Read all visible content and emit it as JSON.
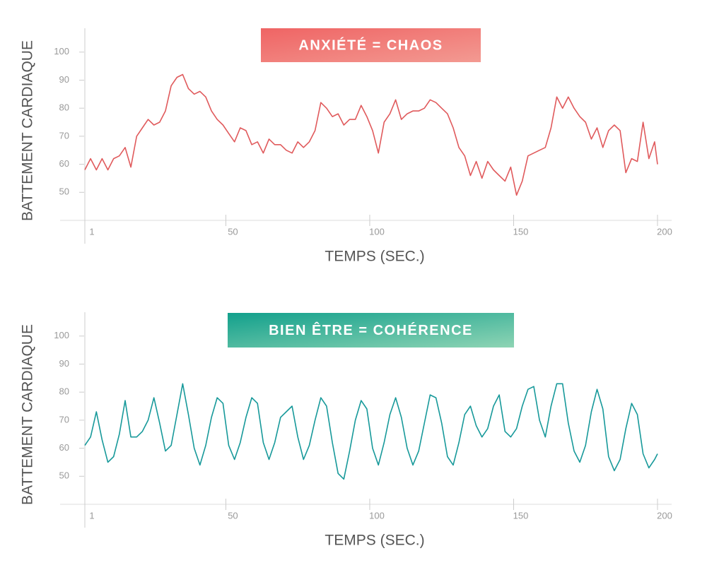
{
  "chart_data": [
    {
      "type": "line",
      "title": "ANXIÉTÉ = CHAOS",
      "xlabel": "TEMPS (SEC.)",
      "ylabel": "BATTEMENT CARDIAQUE",
      "color": "#e05a5c",
      "banner_colors": [
        "#ef6464",
        "#f39a92"
      ],
      "x": [
        1,
        3,
        5,
        7,
        9,
        11,
        13,
        15,
        17,
        19,
        21,
        23,
        25,
        27,
        29,
        31,
        33,
        35,
        37,
        39,
        41,
        43,
        45,
        47,
        49,
        51,
        53,
        55,
        57,
        59,
        61,
        63,
        65,
        67,
        69,
        71,
        73,
        75,
        77,
        79,
        81,
        83,
        85,
        87,
        89,
        91,
        93,
        95,
        97,
        99,
        101,
        103,
        105,
        107,
        109,
        111,
        113,
        115,
        117,
        119,
        121,
        123,
        125,
        127,
        129,
        131,
        133,
        135,
        137,
        139,
        141,
        143,
        145,
        147,
        149,
        151,
        153,
        155,
        157,
        159,
        161,
        163,
        165,
        167,
        169,
        171,
        173,
        175,
        177,
        179,
        181,
        183,
        185,
        187,
        189,
        191,
        193,
        195,
        197,
        199,
        200
      ],
      "values": [
        58,
        62,
        58,
        62,
        58,
        62,
        63,
        66,
        59,
        70,
        73,
        76,
        74,
        75,
        79,
        88,
        91,
        92,
        87,
        85,
        86,
        84,
        79,
        76,
        74,
        71,
        68,
        73,
        72,
        67,
        68,
        64,
        69,
        67,
        67,
        65,
        64,
        68,
        66,
        68,
        72,
        82,
        80,
        77,
        78,
        74,
        76,
        76,
        81,
        77,
        72,
        64,
        75,
        78,
        83,
        76,
        78,
        79,
        79,
        80,
        83,
        82,
        80,
        78,
        73,
        66,
        63,
        56,
        61,
        55,
        61,
        58,
        56,
        54,
        59,
        49,
        54,
        63,
        64,
        65,
        66,
        73,
        84,
        80,
        84,
        80,
        77,
        75,
        69,
        73,
        66,
        72,
        74,
        72,
        57,
        62,
        61,
        75,
        62,
        68,
        60
      ],
      "xlim": [
        1,
        200
      ],
      "ylim": [
        40,
        108
      ],
      "xticks": [
        1,
        50,
        100,
        150,
        200
      ],
      "yticks": [
        50,
        60,
        70,
        80,
        90,
        100
      ]
    },
    {
      "type": "line",
      "title": "BIEN ÊTRE = COHÉRENCE",
      "xlabel": "TEMPS (SEC.)",
      "ylabel": "BATTEMENT CARDIAQUE",
      "color": "#17999a",
      "banner_colors": [
        "#12a08c",
        "#8ed4b4"
      ],
      "x": [
        1,
        3,
        5,
        7,
        9,
        11,
        13,
        15,
        17,
        19,
        21,
        23,
        25,
        27,
        29,
        31,
        33,
        35,
        37,
        39,
        41,
        43,
        45,
        47,
        49,
        51,
        53,
        55,
        57,
        59,
        61,
        63,
        65,
        67,
        69,
        71,
        73,
        75,
        77,
        79,
        81,
        83,
        85,
        87,
        89,
        91,
        93,
        95,
        97,
        99,
        101,
        103,
        105,
        107,
        109,
        111,
        113,
        115,
        117,
        119,
        121,
        123,
        125,
        127,
        129,
        131,
        133,
        135,
        137,
        139,
        141,
        143,
        145,
        147,
        149,
        151,
        153,
        155,
        157,
        159,
        161,
        163,
        165,
        167,
        169,
        171,
        173,
        175,
        177,
        179,
        181,
        183,
        185,
        187,
        189,
        191,
        193,
        195,
        197,
        199,
        200
      ],
      "values": [
        61,
        64,
        73,
        63,
        55,
        57,
        65,
        77,
        64,
        64,
        66,
        70,
        78,
        69,
        59,
        61,
        72,
        83,
        72,
        60,
        54,
        61,
        71,
        78,
        76,
        61,
        56,
        62,
        71,
        78,
        76,
        62,
        56,
        62,
        71,
        73,
        75,
        64,
        56,
        61,
        70,
        78,
        75,
        62,
        51,
        49,
        59,
        70,
        77,
        74,
        60,
        54,
        62,
        72,
        78,
        71,
        60,
        54,
        59,
        69,
        79,
        78,
        69,
        57,
        54,
        62,
        72,
        75,
        68,
        64,
        67,
        75,
        79,
        66,
        64,
        67,
        75,
        81,
        82,
        70,
        64,
        75,
        83,
        83,
        69,
        59,
        55,
        61,
        73,
        81,
        74,
        57,
        52,
        56,
        67,
        76,
        72,
        58,
        53,
        56,
        58
      ],
      "xlim": [
        1,
        200
      ],
      "ylim": [
        40,
        108
      ],
      "xticks": [
        1,
        50,
        100,
        150,
        200
      ],
      "yticks": [
        50,
        60,
        70,
        80,
        90,
        100
      ]
    }
  ]
}
